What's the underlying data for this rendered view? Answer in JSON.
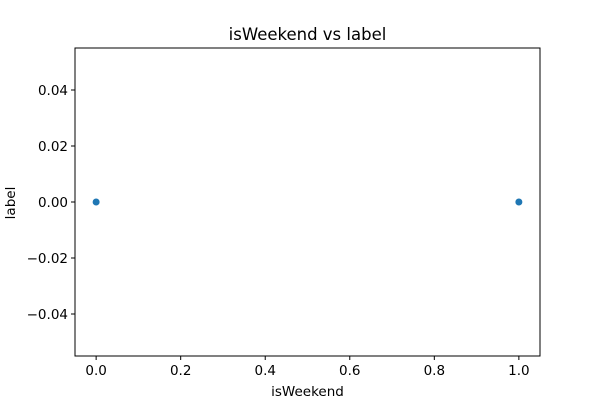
{
  "chart_data": {
    "type": "scatter",
    "title": "isWeekend vs label",
    "xlabel": "isWeekend",
    "ylabel": "label",
    "x": [
      0.0,
      1.0
    ],
    "y": [
      0.0,
      0.0
    ],
    "xlim": [
      -0.05,
      1.05
    ],
    "ylim": [
      -0.055,
      0.055
    ],
    "xticks": [
      0.0,
      0.2,
      0.4,
      0.6,
      0.8,
      1.0
    ],
    "xtick_labels": [
      "0.0",
      "0.2",
      "0.4",
      "0.6",
      "0.8",
      "1.0"
    ],
    "yticks": [
      -0.04,
      -0.02,
      0.0,
      0.02,
      0.04
    ],
    "ytick_labels": [
      "−0.04",
      "−0.02",
      "0.00",
      "0.02",
      "0.04"
    ],
    "grid": false,
    "marker_color": "#1f77b4"
  }
}
